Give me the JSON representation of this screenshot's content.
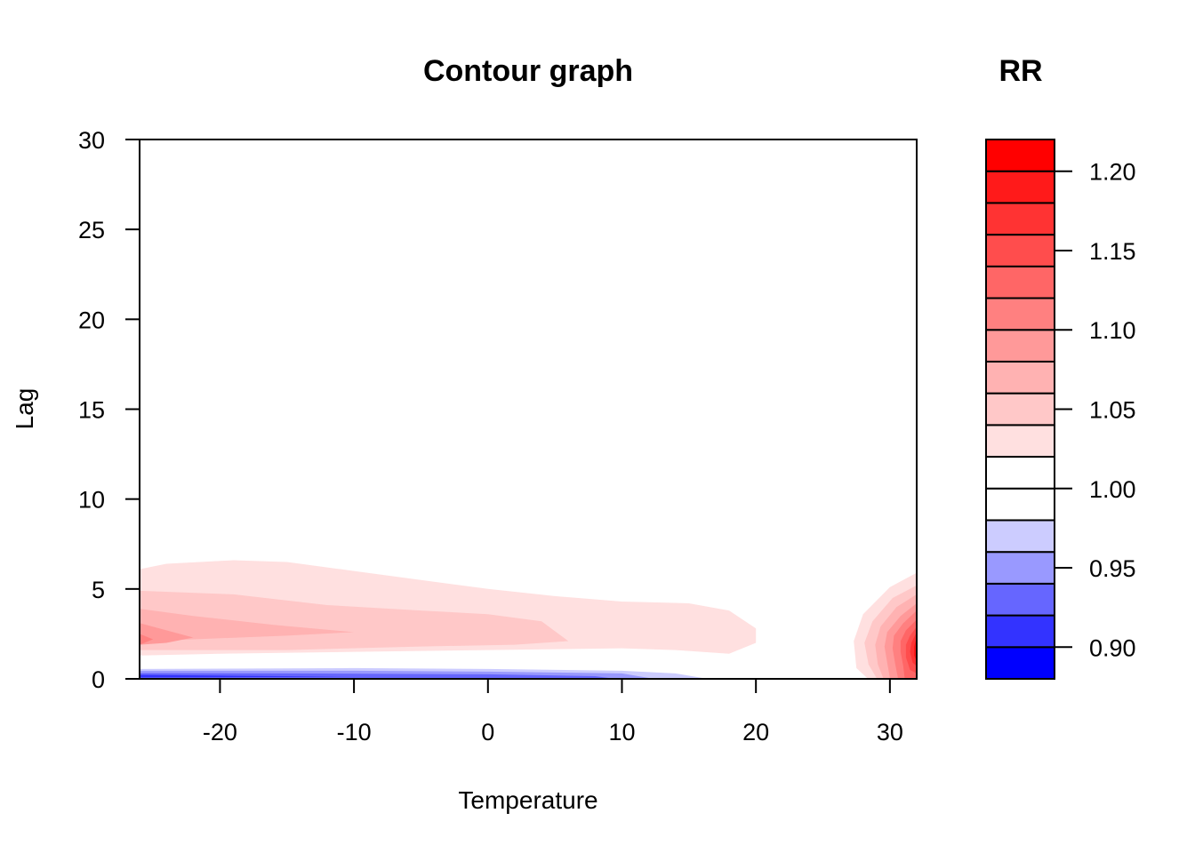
{
  "chart_data": {
    "type": "heatmap",
    "subtype": "filled-contour",
    "title": "Contour graph",
    "xlabel": "Temperature",
    "ylabel": "Lag",
    "xlim": [
      -26,
      32
    ],
    "ylim": [
      0,
      30
    ],
    "xticks": [
      "-20",
      "-10",
      "0",
      "10",
      "20",
      "30"
    ],
    "yticks": [
      "0",
      "5",
      "10",
      "15",
      "20",
      "25",
      "30"
    ],
    "legend": {
      "title": "RR",
      "position": "right",
      "levels": [
        0.88,
        0.9,
        0.92,
        0.94,
        0.96,
        0.98,
        1.0,
        1.02,
        1.04,
        1.06,
        1.08,
        1.1,
        1.12,
        1.14,
        1.16,
        1.18,
        1.2,
        1.22
      ],
      "colors": [
        "#0000ff",
        "#3333ff",
        "#6666ff",
        "#9999ff",
        "#ccccff",
        "#ffffff",
        "#ffffff",
        "#ffe0e0",
        "#ffc8c8",
        "#ffb2b2",
        "#ff9999",
        "#ff8080",
        "#ff6666",
        "#ff4d4d",
        "#ff3333",
        "#ff1a1a",
        "#ff0000"
      ],
      "tick_values": [
        0.9,
        0.95,
        1.0,
        1.05,
        1.1,
        1.15,
        1.2
      ],
      "tick_labels": [
        "0.90",
        "0.95",
        "1.00",
        "1.05",
        "1.10",
        "1.15",
        "1.20"
      ]
    },
    "regions": [
      {
        "rr": 1.02,
        "points": [
          [
            -26,
            6.1
          ],
          [
            -24,
            6.4
          ],
          [
            -19,
            6.6
          ],
          [
            -15,
            6.5
          ],
          [
            -10,
            6.0
          ],
          [
            -5,
            5.5
          ],
          [
            0,
            5.0
          ],
          [
            5,
            4.6
          ],
          [
            10,
            4.3
          ],
          [
            15,
            4.2
          ],
          [
            18,
            3.8
          ],
          [
            20,
            2.8
          ],
          [
            20,
            2.0
          ],
          [
            18,
            1.4
          ],
          [
            14,
            1.6
          ],
          [
            10,
            1.7
          ],
          [
            0,
            1.6
          ],
          [
            -10,
            1.5
          ],
          [
            -20,
            1.4
          ],
          [
            -26,
            1.3
          ]
        ]
      },
      {
        "rr": 1.04,
        "points": [
          [
            -26,
            4.9
          ],
          [
            -19,
            4.7
          ],
          [
            -12,
            4.1
          ],
          [
            -5,
            3.8
          ],
          [
            0,
            3.6
          ],
          [
            4,
            3.2
          ],
          [
            6,
            2.1
          ],
          [
            2,
            1.9
          ],
          [
            -5,
            1.8
          ],
          [
            -15,
            1.6
          ],
          [
            -26,
            1.6
          ]
        ]
      },
      {
        "rr": 1.06,
        "points": [
          [
            -26,
            3.9
          ],
          [
            -22,
            3.5
          ],
          [
            -16,
            3.0
          ],
          [
            -10,
            2.6
          ],
          [
            -15,
            2.4
          ],
          [
            -22,
            2.2
          ],
          [
            -26,
            2.1
          ]
        ]
      },
      {
        "rr": 1.08,
        "points": [
          [
            -26,
            3.1
          ],
          [
            -22,
            2.3
          ],
          [
            -24,
            2.0
          ],
          [
            -26,
            1.9
          ]
        ]
      },
      {
        "rr": 1.1,
        "points": [
          [
            -26,
            2.5
          ],
          [
            -25,
            2.2
          ],
          [
            -26,
            1.9
          ]
        ]
      },
      {
        "rr": 0.98,
        "points": [
          [
            -26,
            0.7
          ],
          [
            -15,
            0.8
          ],
          [
            0,
            0.7
          ],
          [
            10,
            0.6
          ],
          [
            16,
            0.4
          ],
          [
            20,
            0.05
          ],
          [
            -26,
            0.05
          ]
        ]
      },
      {
        "rr": 0.96,
        "points": [
          [
            -26,
            0.55
          ],
          [
            -10,
            0.6
          ],
          [
            0,
            0.55
          ],
          [
            10,
            0.45
          ],
          [
            14,
            0.3
          ],
          [
            16,
            0.05
          ],
          [
            -26,
            0.05
          ]
        ]
      },
      {
        "rr": 0.94,
        "points": [
          [
            -26,
            0.45
          ],
          [
            -10,
            0.45
          ],
          [
            0,
            0.4
          ],
          [
            10,
            0.3
          ],
          [
            12,
            0.05
          ],
          [
            -26,
            0.05
          ]
        ]
      },
      {
        "rr": 0.92,
        "points": [
          [
            -26,
            0.32
          ],
          [
            -15,
            0.3
          ],
          [
            0,
            0.25
          ],
          [
            8,
            0.15
          ],
          [
            9,
            0.05
          ],
          [
            -26,
            0.05
          ]
        ]
      },
      {
        "rr": 0.9,
        "points": [
          [
            -26,
            0.22
          ],
          [
            -20,
            0.18
          ],
          [
            -10,
            0.12
          ],
          [
            -26,
            0.08
          ]
        ]
      },
      {
        "rr": 1.02,
        "points": [
          [
            32,
            5.9
          ],
          [
            30,
            5.1
          ],
          [
            28,
            3.6
          ],
          [
            27.3,
            2.1
          ],
          [
            27.5,
            0.6
          ],
          [
            28.3,
            0.05
          ],
          [
            32,
            0.05
          ]
        ]
      },
      {
        "rr": 1.04,
        "points": [
          [
            32,
            5.2
          ],
          [
            30.2,
            4.5
          ],
          [
            28.7,
            3.2
          ],
          [
            28.1,
            2.0
          ],
          [
            28.4,
            0.8
          ],
          [
            29,
            0.05
          ],
          [
            32,
            0.05
          ]
        ]
      },
      {
        "rr": 1.06,
        "points": [
          [
            32,
            4.7
          ],
          [
            30.5,
            4.0
          ],
          [
            29.3,
            2.9
          ],
          [
            28.9,
            1.9
          ],
          [
            29.1,
            0.8
          ],
          [
            29.5,
            0.05
          ],
          [
            32,
            0.05
          ]
        ]
      },
      {
        "rr": 1.08,
        "points": [
          [
            32,
            4.2
          ],
          [
            30.8,
            3.5
          ],
          [
            29.8,
            2.6
          ],
          [
            29.6,
            1.8
          ],
          [
            29.8,
            0.9
          ],
          [
            30,
            0.05
          ],
          [
            32,
            0.05
          ]
        ]
      },
      {
        "rr": 1.1,
        "points": [
          [
            32,
            3.8
          ],
          [
            31.0,
            3.1
          ],
          [
            30.3,
            2.4
          ],
          [
            30.2,
            1.7
          ],
          [
            30.4,
            0.8
          ],
          [
            30.6,
            0.05
          ],
          [
            32,
            0.05
          ]
        ]
      },
      {
        "rr": 1.12,
        "points": [
          [
            32,
            3.3
          ],
          [
            31.2,
            2.7
          ],
          [
            30.8,
            2.1
          ],
          [
            30.8,
            1.5
          ],
          [
            31,
            0.7
          ],
          [
            31.1,
            0.05
          ],
          [
            32,
            0.05
          ]
        ]
      },
      {
        "rr": 1.14,
        "points": [
          [
            32,
            2.9
          ],
          [
            31.5,
            2.4
          ],
          [
            31.2,
            1.9
          ],
          [
            31.2,
            1.2
          ],
          [
            31.5,
            0.5
          ],
          [
            32,
            0.3
          ]
        ]
      },
      {
        "rr": 1.16,
        "points": [
          [
            32,
            2.6
          ],
          [
            31.6,
            2.0
          ],
          [
            31.5,
            1.5
          ],
          [
            31.7,
            0.9
          ],
          [
            32,
            0.7
          ]
        ]
      },
      {
        "rr": 1.18,
        "points": [
          [
            32,
            2.3
          ],
          [
            31.8,
            1.8
          ],
          [
            31.8,
            1.3
          ],
          [
            32,
            1.0
          ]
        ]
      }
    ]
  }
}
